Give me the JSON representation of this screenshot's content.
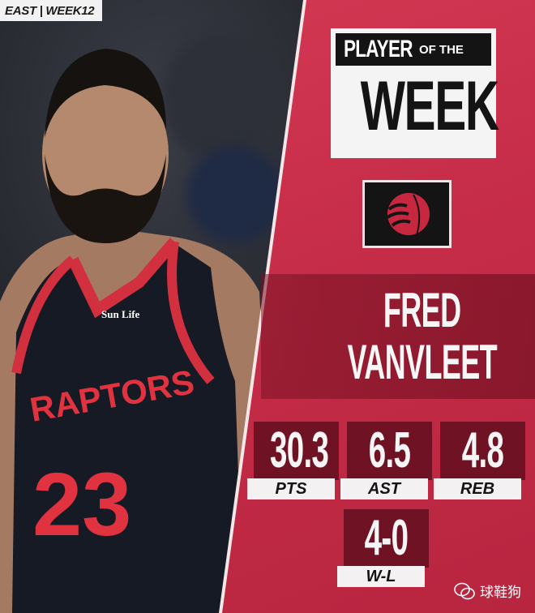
{
  "tag": "EAST | WEEK12",
  "title": {
    "line1": "PLAYER",
    "line1_small": "OF THE",
    "line2": "WEEK"
  },
  "team_logo": "raptors-basketball-claw-icon",
  "player": {
    "first_name": "FRED",
    "last_name": "VANVLEET",
    "jersey_text": "RAPTORS",
    "jersey_number": "23",
    "sponsor": "Sun Life"
  },
  "stats": [
    {
      "value": "30.3",
      "label": "PTS"
    },
    {
      "value": "6.5",
      "label": "AST"
    },
    {
      "value": "4.8",
      "label": "REB"
    },
    {
      "value": "4-0",
      "label": "W-L"
    }
  ],
  "watermark": "球鞋狗",
  "colors": {
    "panel": "#c52c48",
    "dark_red": "#6f1324",
    "black": "#141414"
  }
}
